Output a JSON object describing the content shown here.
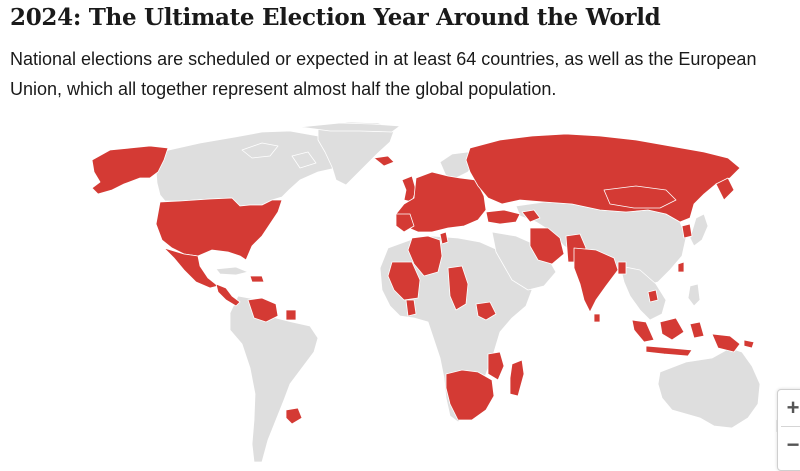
{
  "header": {
    "title": "2024: The Ultimate Election Year Around the World",
    "subtitle": "National elections are scheduled or expected in at least 64 countries, as well as the European Union, which all together represent almost half the global population."
  },
  "colors": {
    "election": "#d43a34",
    "no_election": "#dedede",
    "border": "#ffffff"
  },
  "map": {
    "highlighted_regions": [
      "Alaska",
      "United States",
      "Mexico",
      "Central America",
      "Caribbean",
      "Venezuela",
      "Uruguay",
      "Iceland",
      "United Kingdom",
      "Portugal",
      "Europe",
      "Russia",
      "Algeria",
      "Mali",
      "Mauritania",
      "Tunisia",
      "Chad",
      "Senegal",
      "Ghana",
      "South Sudan",
      "Comoros",
      "Mozambique",
      "Madagascar",
      "Namibia",
      "Botswana",
      "South Africa",
      "Turkey",
      "Georgia",
      "Azerbaijan",
      "Iran",
      "Pakistan",
      "India",
      "Bangladesh",
      "Sri Lanka",
      "Mongolia",
      "Taiwan",
      "South Korea",
      "Cambodia",
      "Indonesia",
      "Papua New Guinea",
      "Solomon Islands"
    ]
  },
  "zoom_controls": {
    "zoom_in_label": "+",
    "zoom_out_label": "−"
  }
}
